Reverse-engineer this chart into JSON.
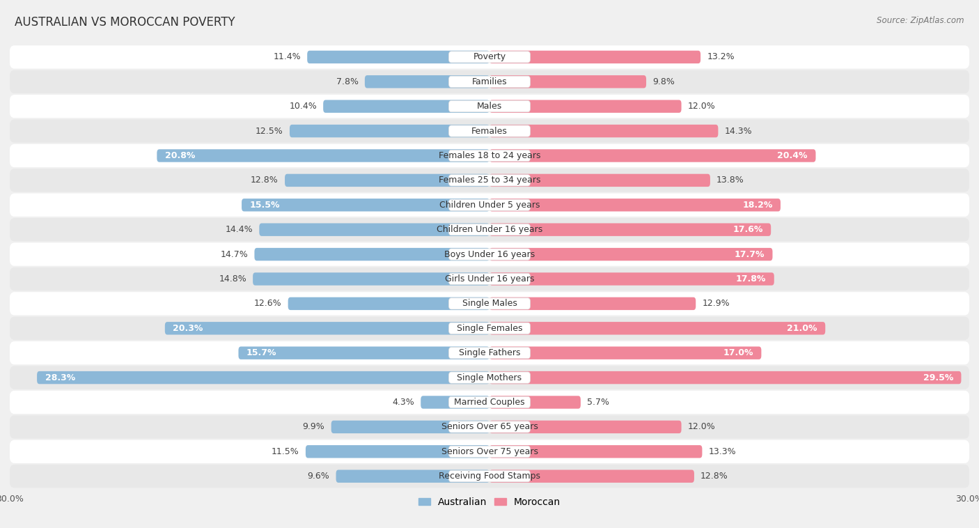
{
  "title": "AUSTRALIAN VS MOROCCAN POVERTY",
  "source": "Source: ZipAtlas.com",
  "categories": [
    "Poverty",
    "Families",
    "Males",
    "Females",
    "Females 18 to 24 years",
    "Females 25 to 34 years",
    "Children Under 5 years",
    "Children Under 16 years",
    "Boys Under 16 years",
    "Girls Under 16 years",
    "Single Males",
    "Single Females",
    "Single Fathers",
    "Single Mothers",
    "Married Couples",
    "Seniors Over 65 years",
    "Seniors Over 75 years",
    "Receiving Food Stamps"
  ],
  "australian_values": [
    11.4,
    7.8,
    10.4,
    12.5,
    20.8,
    12.8,
    15.5,
    14.4,
    14.7,
    14.8,
    12.6,
    20.3,
    15.7,
    28.3,
    4.3,
    9.9,
    11.5,
    9.6
  ],
  "moroccan_values": [
    13.2,
    9.8,
    12.0,
    14.3,
    20.4,
    13.8,
    18.2,
    17.6,
    17.7,
    17.8,
    12.9,
    21.0,
    17.0,
    29.5,
    5.7,
    12.0,
    13.3,
    12.8
  ],
  "australian_color": "#8CB8D8",
  "moroccan_color": "#F0879A",
  "background_color": "#f0f0f0",
  "row_bg_light": "#ffffff",
  "row_bg_dark": "#e8e8e8",
  "axis_max": 30.0,
  "bar_height": 0.52,
  "label_fontsize": 9.0,
  "cat_fontsize": 9.0,
  "title_fontsize": 12,
  "source_fontsize": 8.5,
  "white_label_threshold": 15.0
}
